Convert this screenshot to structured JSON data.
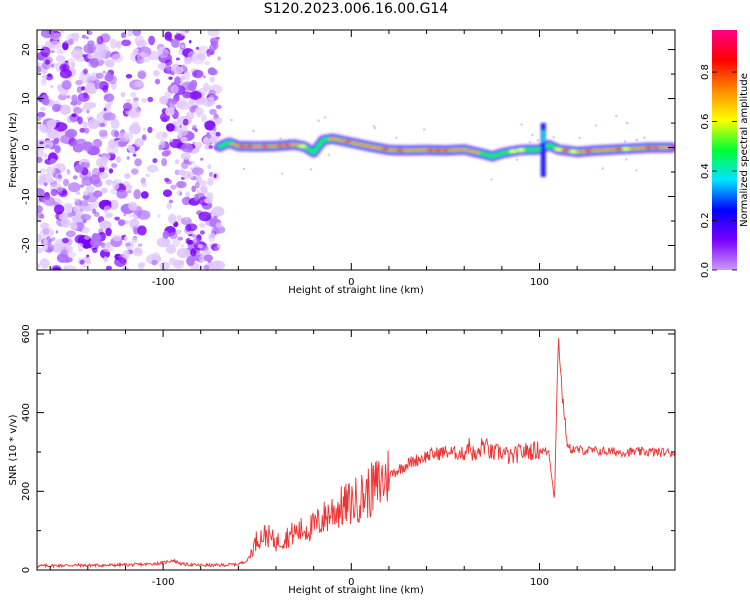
{
  "title": "S120.2023.006.16.00.G14",
  "chart_data": [
    {
      "type": "heatmap",
      "xlabel": "Height of straight line (km)",
      "ylabel": "Frequency (Hz)",
      "xlim": [
        -167,
        172
      ],
      "ylim": [
        -25,
        24
      ],
      "xticks": [
        -100,
        0,
        100
      ],
      "yticks": [
        -20,
        -10,
        0,
        10,
        20
      ],
      "noise_region_x": [
        -167,
        -70
      ],
      "noise_gap_x": [
        -110,
        -100
      ],
      "ridge": {
        "x": [
          -70,
          -65,
          -60,
          -50,
          -40,
          -30,
          -25,
          -20,
          -15,
          -10,
          0,
          10,
          20,
          30,
          40,
          50,
          60,
          70,
          75,
          80,
          85,
          90,
          100,
          105,
          110,
          120,
          130,
          140,
          150,
          160,
          170
        ],
        "freq": [
          0.2,
          1.0,
          0.3,
          0.2,
          0.3,
          0.6,
          0.2,
          -1.0,
          1.5,
          1.8,
          1.0,
          0.2,
          -0.5,
          -0.6,
          -0.5,
          -0.6,
          -0.4,
          -1.3,
          -1.8,
          -1.2,
          -0.8,
          -0.5,
          -0.4,
          0.5,
          -0.4,
          -0.9,
          -0.6,
          -0.4,
          -0.2,
          0.0,
          0.0
        ],
        "amplitude": [
          0.5,
          0.7,
          0.8,
          0.85,
          0.9,
          0.75,
          0.6,
          0.5,
          0.6,
          0.7,
          0.8,
          0.8,
          0.85,
          0.9,
          0.88,
          0.9,
          0.8,
          0.7,
          0.65,
          0.7,
          0.75,
          0.7,
          0.5,
          0.3,
          0.7,
          0.85,
          0.9,
          0.8,
          0.75,
          0.9,
          0.95
        ]
      },
      "spike": {
        "x": 102,
        "freq_range": [
          -6,
          5
        ]
      },
      "colorbar": {
        "label": "Normalized spectral amplitude",
        "ticks": [
          "0.0",
          "0.2",
          "0.4",
          "0.6",
          "0.8"
        ],
        "range": [
          0,
          0.97
        ],
        "colors": [
          "#cc99ff",
          "#7a00ff",
          "#0000ff",
          "#00e5ff",
          "#00ff33",
          "#ffff00",
          "#ff8800",
          "#ff0000",
          "#ff0088"
        ]
      }
    },
    {
      "type": "line",
      "xlabel": "Height of straight line (km)",
      "ylabel": "SNR (10 * v/v)",
      "xlim": [
        -167,
        172
      ],
      "ylim": [
        0,
        610
      ],
      "xticks": [
        -100,
        0,
        100
      ],
      "yticks": [
        0,
        200,
        400,
        600
      ],
      "color": "#ee3333",
      "x": [
        -167,
        -150,
        -130,
        -110,
        -100,
        -95,
        -90,
        -80,
        -70,
        -60,
        -55,
        -50,
        -45,
        -40,
        -30,
        -20,
        -10,
        0,
        10,
        20,
        25,
        30,
        40,
        50,
        60,
        62,
        66,
        68,
        70,
        75,
        80,
        85,
        90,
        100,
        105,
        108,
        110,
        112,
        115,
        120,
        140,
        160,
        172
      ],
      "y": [
        10,
        12,
        12,
        14,
        18,
        25,
        15,
        12,
        12,
        15,
        25,
        80,
        90,
        70,
        95,
        110,
        150,
        170,
        200,
        240,
        255,
        270,
        290,
        300,
        295,
        320,
        285,
        300,
        320,
        295,
        300,
        285,
        300,
        305,
        300,
        180,
        600,
        450,
        310,
        305,
        300,
        300,
        298
      ]
    }
  ]
}
